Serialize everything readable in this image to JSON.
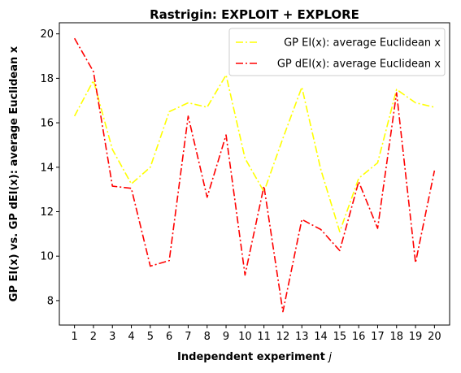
{
  "chart_data": {
    "type": "line",
    "title": "Rastrigin: EXPLOIT + EXPLORE",
    "xlabel": "Independent experiment",
    "xlabel_var": "j",
    "ylabel": "GP EI(x) vs. GP dEI(x): average Euclidean x",
    "x": [
      1,
      2,
      3,
      4,
      5,
      6,
      7,
      8,
      9,
      10,
      11,
      12,
      13,
      14,
      15,
      16,
      17,
      18,
      19,
      20
    ],
    "xlim": [
      0.2,
      20.8
    ],
    "ylim": [
      6.9,
      20.5
    ],
    "yticks": [
      8,
      10,
      12,
      14,
      16,
      18,
      20
    ],
    "grid": false,
    "legend_position": "top-right",
    "series": [
      {
        "name": "GP EI(x): average Euclidean x",
        "color": "#ffff00",
        "style": "dash-dot",
        "values": [
          16.3,
          17.9,
          14.8,
          13.25,
          14.0,
          16.5,
          16.9,
          16.7,
          18.15,
          14.4,
          12.9,
          15.3,
          17.6,
          13.9,
          11.1,
          13.5,
          14.2,
          17.5,
          16.9,
          16.7
        ]
      },
      {
        "name": "GP dEI(x): average Euclidean x",
        "color": "#ff0000",
        "style": "dash-dot",
        "values": [
          19.8,
          18.3,
          13.15,
          13.05,
          9.55,
          9.8,
          16.3,
          12.65,
          15.45,
          9.15,
          13.15,
          7.5,
          11.65,
          11.2,
          10.25,
          13.35,
          11.25,
          17.35,
          9.7,
          13.85
        ]
      }
    ]
  }
}
